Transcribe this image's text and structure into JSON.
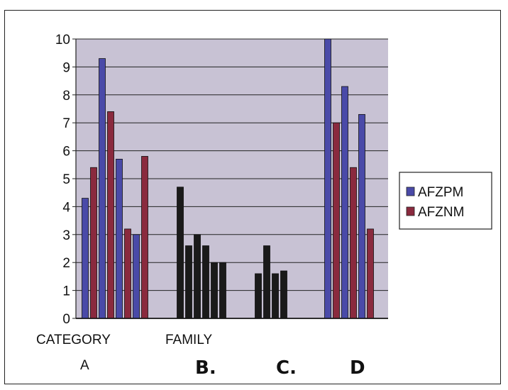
{
  "chart_data": {
    "type": "bar",
    "title": "",
    "xlabel": "",
    "ylabel": "",
    "ylim": [
      0,
      10
    ],
    "yticks": [
      0,
      1,
      2,
      3,
      4,
      5,
      6,
      7,
      8,
      9,
      10
    ],
    "grid": true,
    "legend_position": "right",
    "plot_background": "#c8c2d4",
    "groups": [
      {
        "label_top": "CATEGORY",
        "label_bottom": "A",
        "pairs": [
          [
            4.3,
            5.4
          ],
          [
            9.3,
            7.4
          ],
          [
            5.7,
            3.2
          ],
          [
            3.0,
            5.8
          ]
        ],
        "dark": false
      },
      {
        "label_top": "FAMILY",
        "label_bottom": "B.",
        "pairs": [
          [
            0,
            0
          ],
          [
            4.7,
            2.6
          ],
          [
            3.0,
            2.6
          ],
          [
            2.0,
            2.0
          ]
        ],
        "dark": true
      },
      {
        "label_top": "",
        "label_bottom": "C.",
        "pairs": [
          [
            1.6,
            2.6
          ],
          [
            1.6,
            1.7
          ]
        ],
        "dark": true
      },
      {
        "label_top": "",
        "label_bottom": "D",
        "pairs": [
          [
            10.0,
            7.0
          ],
          [
            8.3,
            5.4
          ],
          [
            7.3,
            3.2
          ]
        ],
        "dark": false
      }
    ],
    "series": [
      {
        "name": "AFZPM",
        "color": "#4a4aa8"
      },
      {
        "name": "AFZNM",
        "color": "#8a2a3e"
      }
    ],
    "dark_color": "#1a1a1a"
  }
}
